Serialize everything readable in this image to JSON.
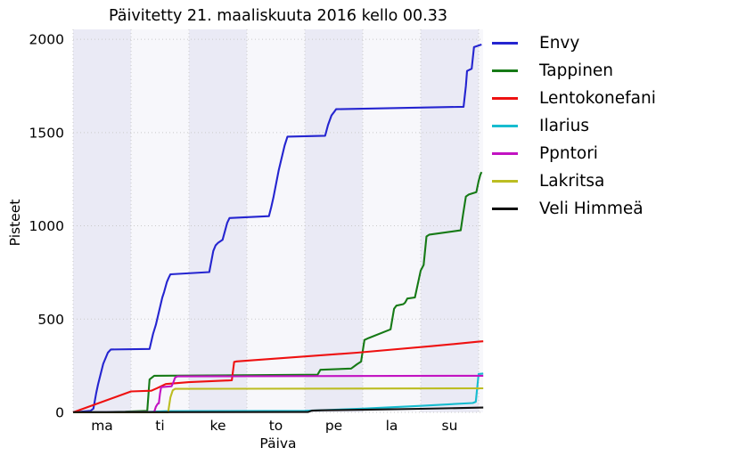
{
  "title": "Päivitetty 21. maaliskuuta 2016 kello 00.33",
  "chart_data": {
    "type": "line",
    "title": "Päivitetty 21. maaliskuuta 2016 kello 00.33",
    "xlabel": "Päiva",
    "ylabel": "Pisteet",
    "x_ticks": [
      "ma",
      "ti",
      "ke",
      "to",
      "pe",
      "la",
      "su"
    ],
    "y_ticks": [
      0,
      500,
      1000,
      1500,
      2000
    ],
    "ylim": [
      0,
      2050
    ],
    "xlim_days": [
      0,
      7.08
    ],
    "x_unit": "weekdays, 1 unit = 1 day starting Monday (ma)",
    "grid": "dotted",
    "legend_position": "right",
    "band_colors": [
      "#eaeaf5",
      "#f7f7fb"
    ],
    "gridline_color": "#c9c9c9",
    "series": [
      {
        "name": "Envy",
        "color": "#2525d0",
        "points": [
          [
            0,
            0
          ],
          [
            0.3,
            8
          ],
          [
            0.35,
            20
          ],
          [
            0.4,
            105
          ],
          [
            0.43,
            150
          ],
          [
            0.52,
            260
          ],
          [
            0.6,
            320
          ],
          [
            0.65,
            337
          ],
          [
            1.32,
            340
          ],
          [
            1.38,
            420
          ],
          [
            1.43,
            470
          ],
          [
            1.54,
            616
          ],
          [
            1.57,
            645
          ],
          [
            1.62,
            700
          ],
          [
            1.65,
            722
          ],
          [
            1.68,
            740
          ],
          [
            2.35,
            752
          ],
          [
            2.42,
            865
          ],
          [
            2.46,
            895
          ],
          [
            2.5,
            908
          ],
          [
            2.58,
            925
          ],
          [
            2.66,
            1016
          ],
          [
            2.7,
            1042
          ],
          [
            3.38,
            1052
          ],
          [
            3.42,
            1100
          ],
          [
            3.46,
            1155
          ],
          [
            3.55,
            1300
          ],
          [
            3.65,
            1430
          ],
          [
            3.7,
            1478
          ],
          [
            4.35,
            1483
          ],
          [
            4.4,
            1540
          ],
          [
            4.46,
            1592
          ],
          [
            4.5,
            1608
          ],
          [
            4.54,
            1625
          ],
          [
            6.74,
            1638
          ],
          [
            6.78,
            1750
          ],
          [
            6.8,
            1830
          ],
          [
            6.88,
            1842
          ],
          [
            6.92,
            1958
          ],
          [
            7.05,
            1972
          ]
        ]
      },
      {
        "name": "Tappinen",
        "color": "#167a16",
        "points": [
          [
            0,
            0
          ],
          [
            0.9,
            4
          ],
          [
            1.28,
            8
          ],
          [
            1.32,
            176
          ],
          [
            1.4,
            196
          ],
          [
            4.22,
            202
          ],
          [
            4.27,
            228
          ],
          [
            4.8,
            235
          ],
          [
            4.9,
            258
          ],
          [
            4.97,
            272
          ],
          [
            5.0,
            330
          ],
          [
            5.03,
            388
          ],
          [
            5.1,
            398
          ],
          [
            5.48,
            445
          ],
          [
            5.54,
            555
          ],
          [
            5.58,
            572
          ],
          [
            5.7,
            580
          ],
          [
            5.73,
            588
          ],
          [
            5.77,
            610
          ],
          [
            5.9,
            616
          ],
          [
            6.0,
            760
          ],
          [
            6.05,
            790
          ],
          [
            6.1,
            943
          ],
          [
            6.15,
            953
          ],
          [
            6.69,
            976
          ],
          [
            6.73,
            1060
          ],
          [
            6.78,
            1157
          ],
          [
            6.83,
            1168
          ],
          [
            6.96,
            1180
          ],
          [
            7.0,
            1240
          ],
          [
            7.03,
            1275
          ],
          [
            7.05,
            1288
          ]
        ]
      },
      {
        "name": "Lentokonefani",
        "color": "#ee1111",
        "points": [
          [
            0,
            0
          ],
          [
            1.0,
            112
          ],
          [
            1.35,
            116
          ],
          [
            1.45,
            130
          ],
          [
            1.6,
            152
          ],
          [
            2.0,
            162
          ],
          [
            2.74,
            172
          ],
          [
            2.78,
            270
          ],
          [
            2.82,
            273
          ],
          [
            4.9,
            320
          ],
          [
            6.2,
            355
          ],
          [
            7.0,
            379
          ],
          [
            7.08,
            381
          ]
        ]
      },
      {
        "name": "Ilarius",
        "color": "#17bccf",
        "points": [
          [
            0,
            0
          ],
          [
            1.3,
            3
          ],
          [
            1.6,
            6
          ],
          [
            4.0,
            8
          ],
          [
            5.0,
            20
          ],
          [
            6.0,
            35
          ],
          [
            6.9,
            50
          ],
          [
            6.95,
            57
          ],
          [
            7.0,
            206
          ],
          [
            7.08,
            208
          ]
        ]
      },
      {
        "name": "Ppntori",
        "color": "#c213c2",
        "points": [
          [
            0,
            0
          ],
          [
            1.4,
            2
          ],
          [
            1.43,
            30
          ],
          [
            1.46,
            46
          ],
          [
            1.48,
            48
          ],
          [
            1.5,
            100
          ],
          [
            1.52,
            135
          ],
          [
            1.7,
            140
          ],
          [
            1.73,
            160
          ],
          [
            1.76,
            186
          ],
          [
            1.8,
            193
          ],
          [
            7.08,
            196
          ]
        ]
      },
      {
        "name": "Lakritsa",
        "color": "#bcbd22",
        "points": [
          [
            0,
            0
          ],
          [
            1.64,
            0
          ],
          [
            1.68,
            80
          ],
          [
            1.72,
            118
          ],
          [
            1.76,
            126
          ],
          [
            7.08,
            129
          ]
        ]
      },
      {
        "name": "Veli Himmeä",
        "color": "#111111",
        "points": [
          [
            0,
            1
          ],
          [
            4.05,
            2
          ],
          [
            4.12,
            9
          ],
          [
            4.3,
            11
          ],
          [
            5.0,
            14
          ],
          [
            6.0,
            19
          ],
          [
            7.08,
            26
          ]
        ]
      }
    ]
  },
  "legend": {
    "items": [
      "Envy",
      "Tappinen",
      "Lentokonefani",
      "Ilarius",
      "Ppntori",
      "Lakritsa",
      "Veli Himmeä"
    ]
  }
}
